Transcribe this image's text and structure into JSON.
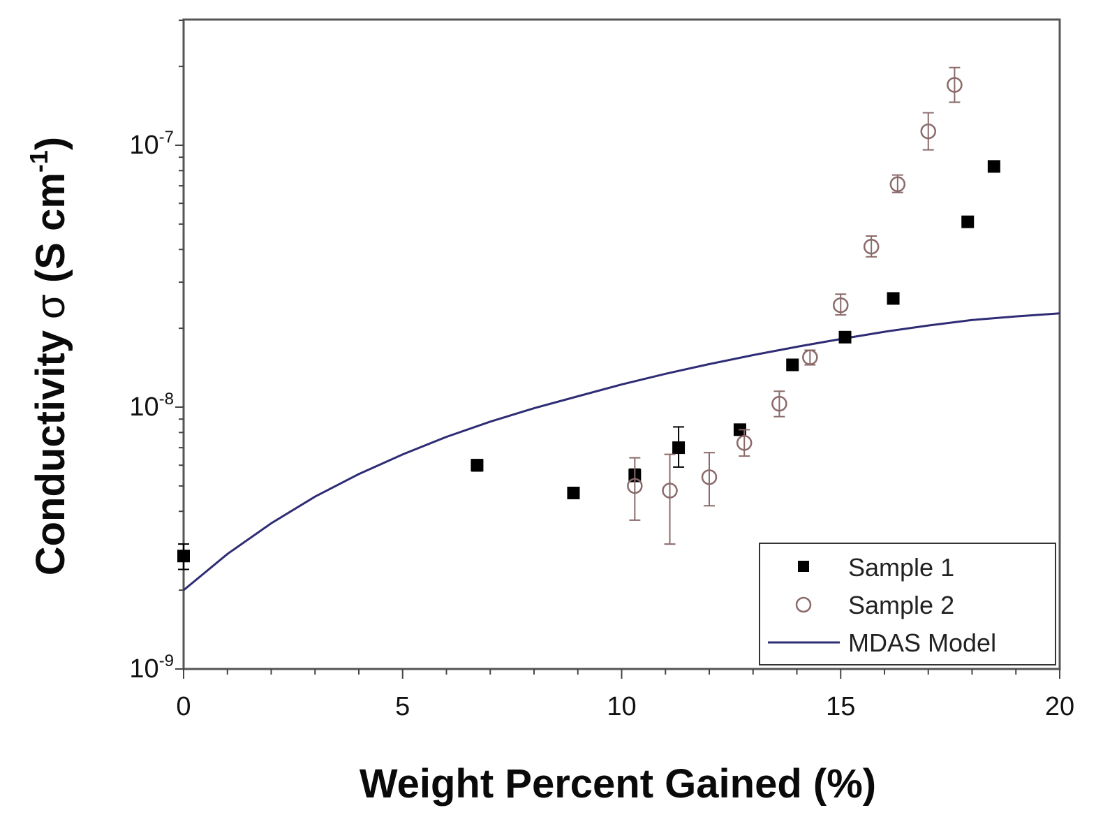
{
  "chart_data": {
    "type": "scatter",
    "title": "",
    "xlabel": "Weight Percent Gained (%)",
    "ylabel": {
      "main": "Conductivity ",
      "symbol": "σ",
      "unit_open": " (S cm",
      "unit_exp": "-1",
      "unit_close": ")"
    },
    "xlim": [
      0,
      20
    ],
    "ylim": [
      1e-09,
      3e-07
    ],
    "yscale": "log",
    "x_ticks": [
      {
        "value": 0,
        "label": "0"
      },
      {
        "value": 5,
        "label": "5"
      },
      {
        "value": 10,
        "label": "10"
      },
      {
        "value": 15,
        "label": "15"
      },
      {
        "value": 20,
        "label": "20"
      }
    ],
    "y_ticks": [
      {
        "value": 1e-09,
        "base": "10",
        "exp": "-9"
      },
      {
        "value": 1e-08,
        "base": "10",
        "exp": "-8"
      },
      {
        "value": 1e-07,
        "base": "10",
        "exp": "-7"
      }
    ],
    "legend_position": "bottom-right",
    "series": [
      {
        "name": "Sample 1",
        "marker": "filled-square",
        "color": "#000000",
        "points": [
          {
            "x": 0.0,
            "y": 2.7e-09,
            "err": [
              2.4e-09,
              3e-09
            ]
          },
          {
            "x": 6.7,
            "y": 6e-09,
            "err": [
              5.7e-09,
              6.3e-09
            ]
          },
          {
            "x": 8.9,
            "y": 4.7e-09,
            "err": [
              4.5e-09,
              4.9e-09
            ]
          },
          {
            "x": 10.3,
            "y": 5.5e-09,
            "err": [
              5.2e-09,
              5.8e-09
            ]
          },
          {
            "x": 11.3,
            "y": 7e-09,
            "err": [
              5.9e-09,
              8.4e-09
            ]
          },
          {
            "x": 12.7,
            "y": 8.2e-09,
            "err": [
              7.9e-09,
              8.5e-09
            ]
          },
          {
            "x": 13.9,
            "y": 1.45e-08,
            "err": [
              1.4e-08,
              1.5e-08
            ]
          },
          {
            "x": 15.1,
            "y": 1.85e-08,
            "err": [
              1.78e-08,
              1.92e-08
            ]
          },
          {
            "x": 16.2,
            "y": 2.6e-08,
            "err": [
              2.52e-08,
              2.68e-08
            ]
          },
          {
            "x": 17.9,
            "y": 5.1e-08,
            "err": [
              4.95e-08,
              5.25e-08
            ]
          },
          {
            "x": 18.5,
            "y": 8.3e-08,
            "err": [
              8.1e-08,
              8.5e-08
            ]
          }
        ]
      },
      {
        "name": "Sample 2",
        "marker": "open-circle",
        "color": "#8a6a6a",
        "points": [
          {
            "x": 10.3,
            "y": 5e-09,
            "err": [
              3.7e-09,
              6.4e-09
            ]
          },
          {
            "x": 11.1,
            "y": 4.8e-09,
            "err": [
              3e-09,
              6.6e-09
            ]
          },
          {
            "x": 12.0,
            "y": 5.4e-09,
            "err": [
              4.2e-09,
              6.7e-09
            ]
          },
          {
            "x": 12.8,
            "y": 7.3e-09,
            "err": [
              6.5e-09,
              8.2e-09
            ]
          },
          {
            "x": 13.6,
            "y": 1.03e-08,
            "err": [
              9.2e-09,
              1.15e-08
            ]
          },
          {
            "x": 14.3,
            "y": 1.55e-08,
            "err": [
              1.45e-08,
              1.65e-08
            ]
          },
          {
            "x": 15.0,
            "y": 2.45e-08,
            "err": [
              2.25e-08,
              2.7e-08
            ]
          },
          {
            "x": 15.7,
            "y": 4.1e-08,
            "err": [
              3.75e-08,
              4.5e-08
            ]
          },
          {
            "x": 16.3,
            "y": 7.1e-08,
            "err": [
              6.6e-08,
              7.7e-08
            ]
          },
          {
            "x": 17.0,
            "y": 1.13e-07,
            "err": [
              9.6e-08,
              1.33e-07
            ]
          },
          {
            "x": 17.6,
            "y": 1.7e-07,
            "err": [
              1.46e-07,
              1.98e-07
            ]
          }
        ]
      },
      {
        "name": "MDAS Model",
        "marker": "line",
        "color": "#2e2c74",
        "x": [
          0,
          1,
          2,
          3,
          4,
          5,
          6,
          7,
          8,
          9,
          10,
          11,
          12,
          13,
          14,
          15,
          16,
          17,
          18,
          19,
          20
        ],
        "y": [
          2e-09,
          2.75e-09,
          3.6e-09,
          4.55e-09,
          5.55e-09,
          6.6e-09,
          7.7e-09,
          8.8e-09,
          9.9e-09,
          1.1e-08,
          1.22e-08,
          1.34e-08,
          1.46e-08,
          1.58e-08,
          1.7e-08,
          1.82e-08,
          1.94e-08,
          2.05e-08,
          2.15e-08,
          2.22e-08,
          2.28e-08
        ]
      }
    ]
  }
}
